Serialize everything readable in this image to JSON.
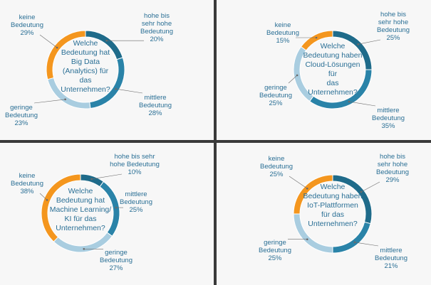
{
  "colors": {
    "hohe": "#1f6b8a",
    "mittlere": "#2a83a8",
    "geringe": "#a9cde0",
    "keine": "#f4961e",
    "label": "#2a6f95",
    "center_text": "#2a6f95",
    "divider": "#3a3a3a"
  },
  "chart_data": [
    {
      "type": "pie",
      "style": "donut",
      "title": "Welche Bedeutung hat Big Data (Analytics) für das Unternehmen?",
      "title_lines": [
        "Welche",
        "Bedeutung hat",
        "Big Data",
        "(Analytics) für",
        "das",
        "Unternehmen?"
      ],
      "categories": [
        "hohe bis sehr hohe Bedeutung",
        "mittlere Bedeutung",
        "geringe Bedeutung",
        "keine Bedeutung"
      ],
      "values": [
        20,
        28,
        23,
        29
      ],
      "labels": [
        {
          "lines": [
            "hohe bis",
            "sehr hohe",
            "Bedeutung",
            "20%"
          ]
        },
        {
          "lines": [
            "mittlere",
            "Bedeutung",
            "28%"
          ]
        },
        {
          "lines": [
            "geringe",
            "Bedeutung",
            "23%"
          ]
        },
        {
          "lines": [
            "keine",
            "Bedeutung",
            "29%"
          ]
        }
      ]
    },
    {
      "type": "pie",
      "style": "donut",
      "title": "Welche Bedeutung haben Cloud-Lösungen für das Unternehmen?",
      "title_lines": [
        "Welche",
        "Bedeutung haben",
        "Cloud-Lösungen",
        "für",
        "das",
        "Unternehmen?"
      ],
      "categories": [
        "hohe bis sehr hohe Bedeutung",
        "mittlere Bedeutung",
        "geringe Bedeutung",
        "keine Bedeutung"
      ],
      "values": [
        25,
        35,
        25,
        15
      ],
      "labels": [
        {
          "lines": [
            "hohe bis",
            "sehr hohe",
            "Bedeutung",
            "25%"
          ]
        },
        {
          "lines": [
            "mittlere",
            "Bedeutung",
            "35%"
          ]
        },
        {
          "lines": [
            "geringe",
            "Bedeutung",
            "25%"
          ]
        },
        {
          "lines": [
            "keine",
            "Bedeutung",
            "15%"
          ]
        }
      ]
    },
    {
      "type": "pie",
      "style": "donut",
      "title": "Welche Bedeutung hat Machine Learning/ KI für das Unternehmen?",
      "title_lines": [
        "Welche",
        "Bedeutung hat",
        "Machine Learning/",
        "KI für das",
        "Unternehmen?"
      ],
      "categories": [
        "hohe bis sehr hohe Bedeutung",
        "mittlere Bedeutung",
        "geringe Bedeutung",
        "keine Bedeutung"
      ],
      "values": [
        10,
        25,
        27,
        38
      ],
      "labels": [
        {
          "lines": [
            "hohe bis sehr",
            "hohe Bedeutung",
            "10%"
          ]
        },
        {
          "lines": [
            "mittlere",
            "Bedeutung",
            "25%"
          ]
        },
        {
          "lines": [
            "geringe",
            "Bedeutung",
            "27%"
          ]
        },
        {
          "lines": [
            "keine",
            "Bedeutung",
            "38%"
          ]
        }
      ]
    },
    {
      "type": "pie",
      "style": "donut",
      "title": "Welche Bedeutung haben IoT-Plattformen für das Unternehmen?",
      "title_lines": [
        "Welche",
        "Bedeutung haben",
        "IoT-Plattformen",
        "für das",
        "Unternehmen?"
      ],
      "categories": [
        "hohe bis sehr hohe Bedeutung",
        "mittlere Bedeutung",
        "geringe Bedeutung",
        "keine Bedeutung"
      ],
      "values": [
        29,
        21,
        25,
        25
      ],
      "labels": [
        {
          "lines": [
            "hohe bis",
            "sehr hohe",
            "Bedeutung",
            "29%"
          ]
        },
        {
          "lines": [
            "mittlere",
            "Bedeutung",
            "21%"
          ]
        },
        {
          "lines": [
            "geringe",
            "Bedeutung",
            "25%"
          ]
        },
        {
          "lines": [
            "keine",
            "Bedeutung",
            "25%"
          ]
        }
      ]
    }
  ]
}
